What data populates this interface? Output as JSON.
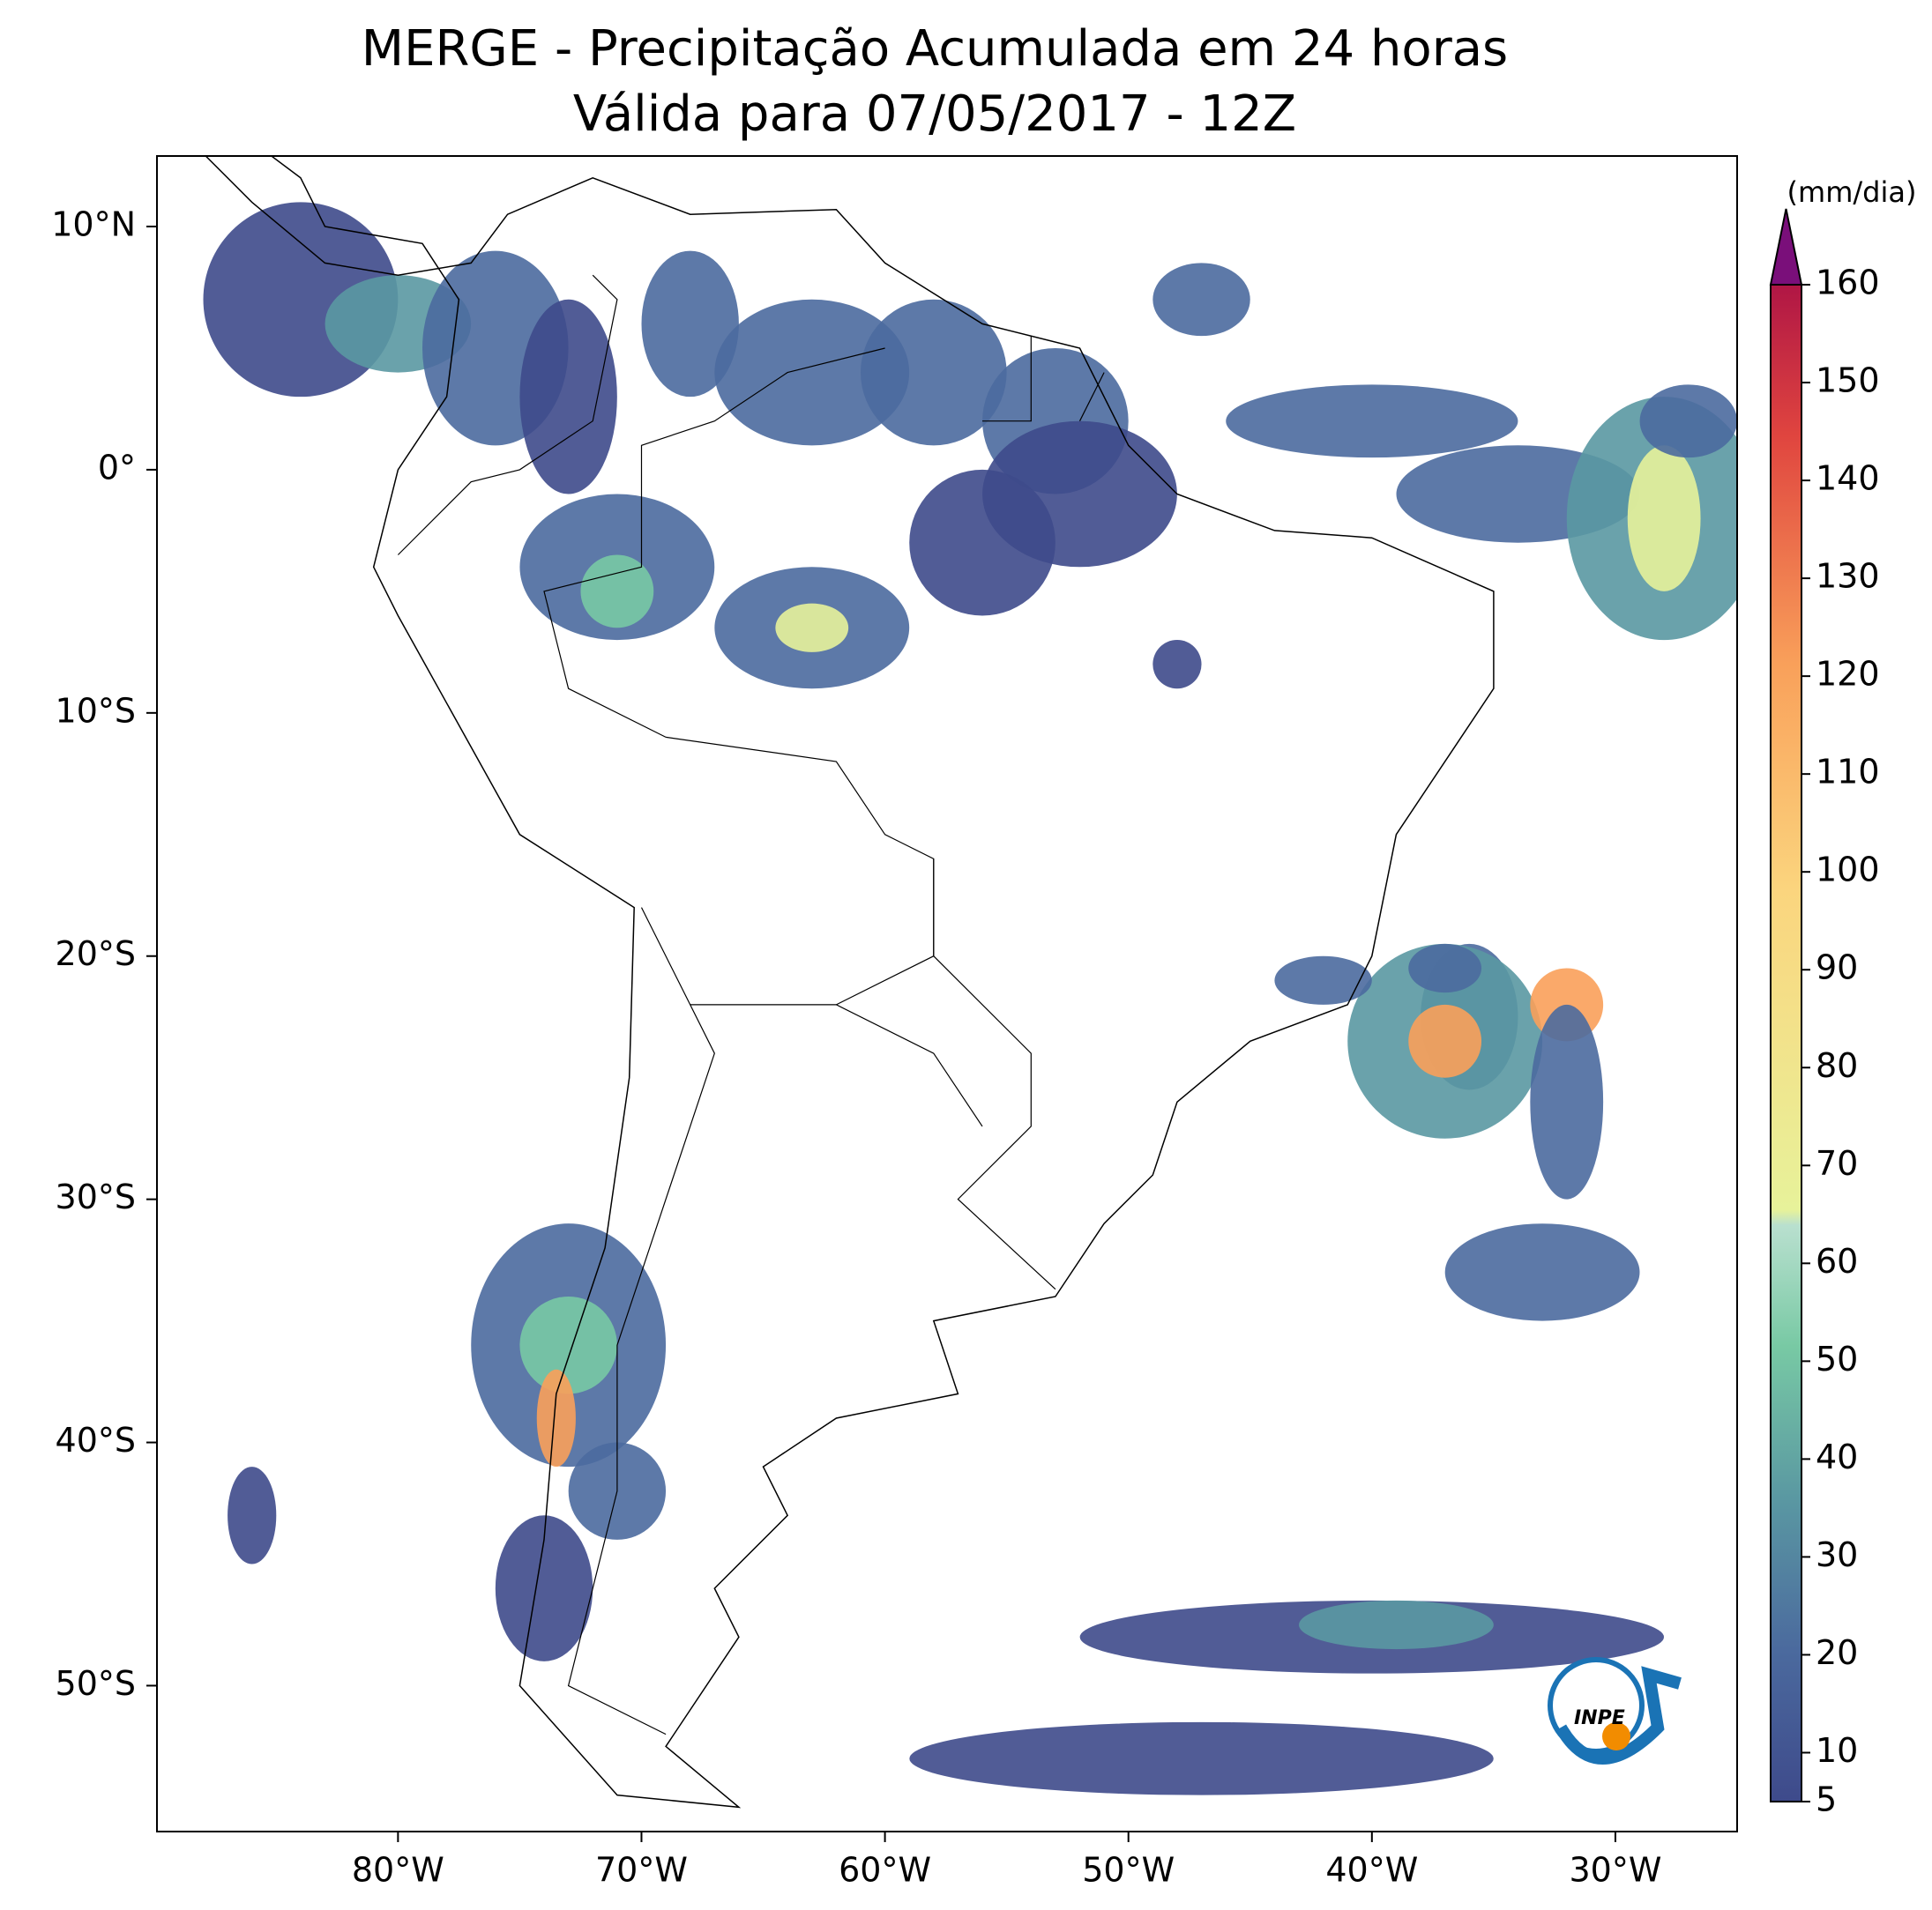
{
  "map": {
    "title": "MERGE - Precipitação Acumulada em 24 horas",
    "subtitle": "Válida para 07/05/2017 - 12Z",
    "xlim": [
      -89.9,
      -25
    ],
    "ylim": [
      -56,
      12.9
    ],
    "xticks": [
      {
        "value": -80,
        "label": "80°W"
      },
      {
        "value": -70,
        "label": "70°W"
      },
      {
        "value": -60,
        "label": "60°W"
      },
      {
        "value": -50,
        "label": "50°W"
      },
      {
        "value": -40,
        "label": "40°W"
      },
      {
        "value": -30,
        "label": "30°W"
      }
    ],
    "yticks": [
      {
        "value": 10,
        "label": "10°N"
      },
      {
        "value": 0,
        "label": "0°"
      },
      {
        "value": -10,
        "label": "10°S"
      },
      {
        "value": -20,
        "label": "20°S"
      },
      {
        "value": -30,
        "label": "30°S"
      },
      {
        "value": -40,
        "label": "40°S"
      },
      {
        "value": -50,
        "label": "50°S"
      }
    ],
    "colorbar": {
      "label": "(mm/dia)",
      "lim": [
        5,
        160
      ],
      "ticks": [
        5,
        10,
        20,
        30,
        40,
        50,
        60,
        70,
        80,
        90,
        100,
        110,
        120,
        130,
        140,
        150,
        160
      ]
    },
    "logo": "INPE"
  }
}
